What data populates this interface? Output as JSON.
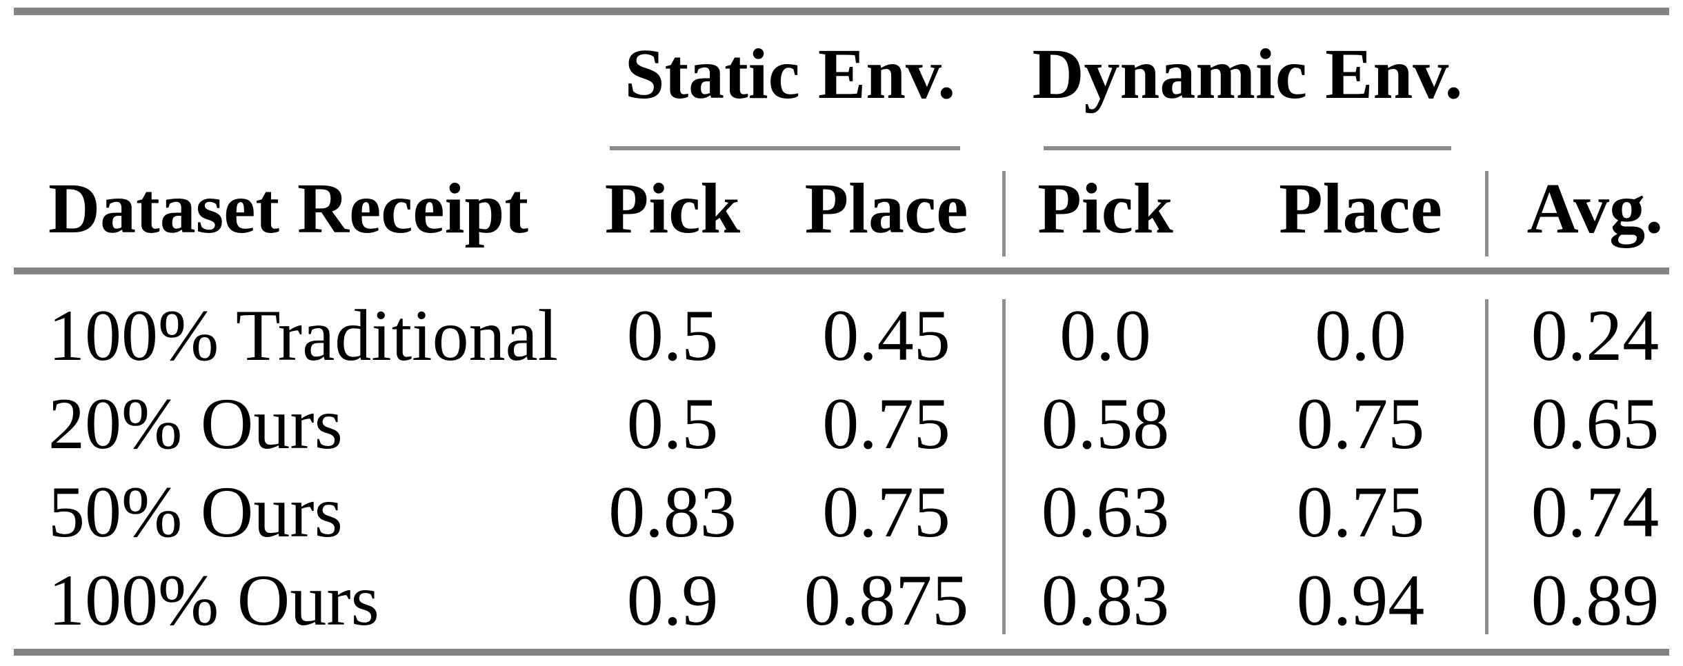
{
  "table": {
    "group_headers": [
      {
        "label": "Static Env."
      },
      {
        "label": "Dynamic Env."
      }
    ],
    "columns": {
      "dataset": "Dataset Receipt",
      "static_pick": "Pick",
      "static_place": "Place",
      "dynamic_pick": "Pick",
      "dynamic_place": "Place",
      "avg": "Avg."
    },
    "rows": [
      {
        "dataset": "100% Traditional",
        "static_pick": "0.5",
        "static_place": "0.45",
        "dynamic_pick": "0.0",
        "dynamic_place": "0.0",
        "avg": "0.24"
      },
      {
        "dataset": "20% Ours",
        "static_pick": "0.5",
        "static_place": "0.75",
        "dynamic_pick": "0.58",
        "dynamic_place": "0.75",
        "avg": "0.65"
      },
      {
        "dataset": "50% Ours",
        "static_pick": "0.83",
        "static_place": "0.75",
        "dynamic_pick": "0.63",
        "dynamic_place": "0.75",
        "avg": "0.74"
      },
      {
        "dataset": "100% Ours",
        "static_pick": "0.9",
        "static_place": "0.875",
        "dynamic_pick": "0.83",
        "dynamic_place": "0.94",
        "avg": "0.89"
      }
    ]
  },
  "colors": {
    "rule_heavy": "#838383",
    "rule_light": "#8f8f8f",
    "text": "#000000",
    "background": "#ffffff"
  }
}
